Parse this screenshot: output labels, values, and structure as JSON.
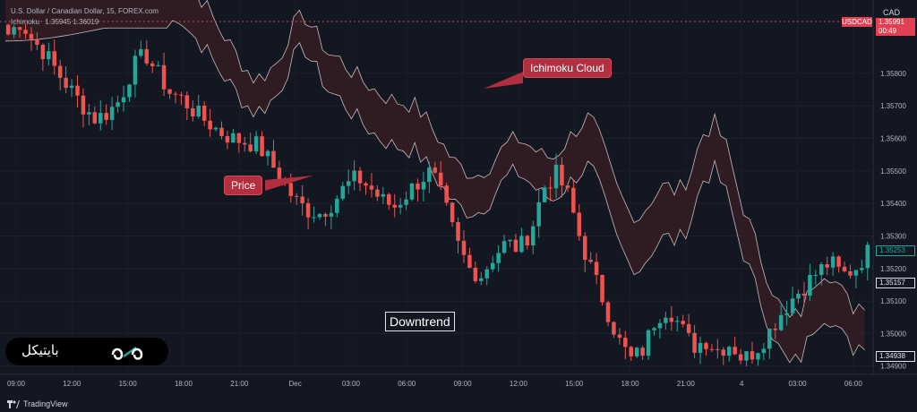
{
  "header": {
    "symbol": "U.S. Dollar / Canadian Dollar, 15, FOREX.com",
    "indicator": "Ichimoku",
    "indicator_values": "1.35945  1.36019"
  },
  "price_axis": {
    "currency": "CAD",
    "badges": {
      "symbol_tag": "USDCAD",
      "countdown": "00:49",
      "top_value": "1.35991",
      "current": "1.35253",
      "span_a": "1.35157",
      "span_b": "1.34938"
    }
  },
  "annotations": {
    "cloud_label": "Ichimoku Cloud",
    "price_label": "Price",
    "trend_label": "Downtrend"
  },
  "brand": {
    "text": "بایتیکل"
  },
  "footer": {
    "logo_text": "TradingView"
  },
  "colors": {
    "background": "#131722",
    "bull": "#26a69a",
    "bear": "#ef5350",
    "cloud_fill": "#3a1f24",
    "callout": "#b22f3f"
  },
  "chart_data": {
    "type": "candlestick",
    "x_ticks": [
      "09:00",
      "12:00",
      "15:00",
      "18:00",
      "21:00",
      "Dec",
      "03:00",
      "06:00",
      "09:00",
      "12:00",
      "15:00",
      "18:00",
      "21:00",
      "4",
      "03:00",
      "06:00"
    ],
    "y_ticks": [
      1.349,
      1.35,
      1.351,
      1.352,
      1.353,
      1.354,
      1.355,
      1.356,
      1.357,
      1.358
    ],
    "ylim": [
      1.3488,
      1.3602
    ],
    "close_path": [
      1.3592,
      1.3596,
      1.359,
      1.3586,
      1.358,
      1.3575,
      1.357,
      1.3566,
      1.3568,
      1.3572,
      1.3582,
      1.3586,
      1.358,
      1.3574,
      1.3572,
      1.3568,
      1.3565,
      1.3562,
      1.356,
      1.3559,
      1.3558,
      1.3553,
      1.3547,
      1.3541,
      1.3538,
      1.3537,
      1.354,
      1.3545,
      1.3548,
      1.3545,
      1.3541,
      1.3539,
      1.3543,
      1.3547,
      1.355,
      1.354,
      1.3528,
      1.352,
      1.3518,
      1.3524,
      1.3528,
      1.3526,
      1.3532,
      1.3545,
      1.3549,
      1.3542,
      1.3528,
      1.3518,
      1.3508,
      1.3498,
      1.3492,
      1.3495,
      1.3505,
      1.3508,
      1.3502,
      1.3496,
      1.3498,
      1.3495,
      1.3497,
      1.3492,
      1.3495,
      1.35,
      1.3506,
      1.3511,
      1.3515,
      1.3519,
      1.3522,
      1.3518,
      1.352,
      1.3525
    ]
  }
}
